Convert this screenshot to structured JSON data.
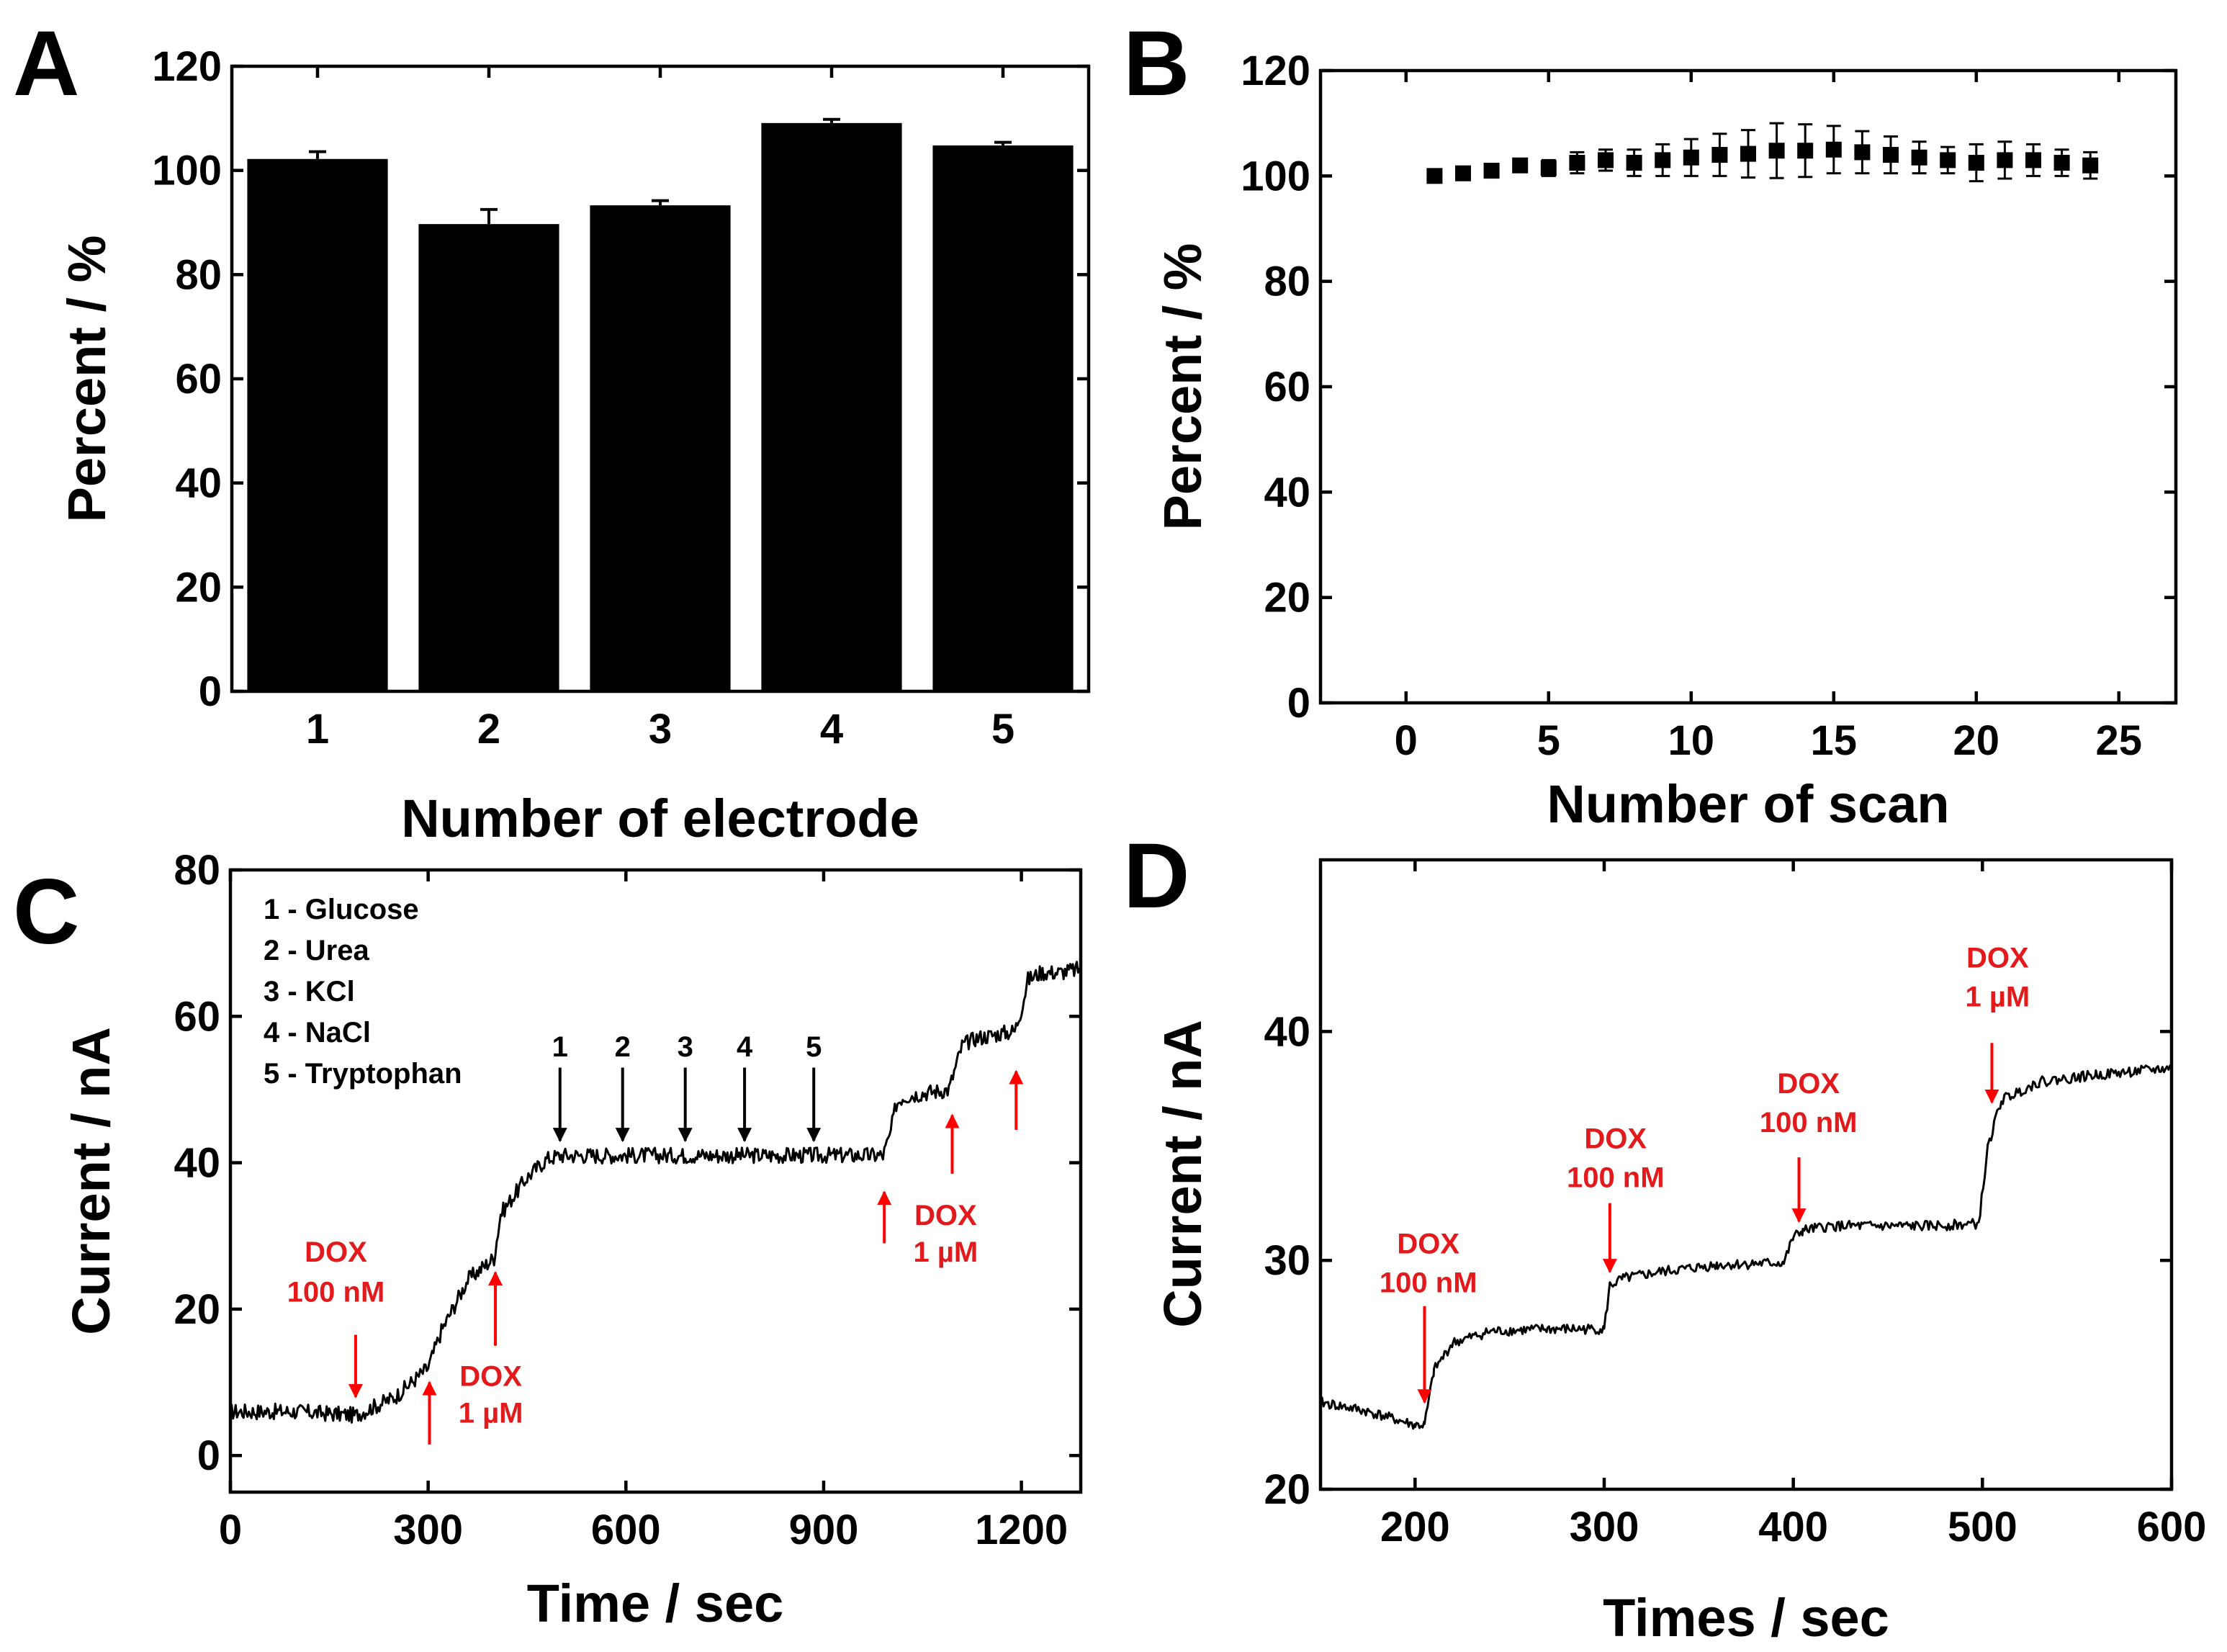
{
  "chart_data": [
    {
      "id": "A",
      "panel_label": "A",
      "type": "bar",
      "categories": [
        "1",
        "2",
        "3",
        "4",
        "5"
      ],
      "values": [
        102.2,
        89.7,
        93.3,
        109.1,
        104.8
      ],
      "errors": [
        1.4,
        2.8,
        0.9,
        0.7,
        0.6
      ],
      "xlabel": "Number of electrode",
      "ylabel": "Percent / %",
      "ylim": [
        0,
        120
      ],
      "yticks": [
        0,
        20,
        40,
        60,
        80,
        100,
        120
      ],
      "bar_color": "#000000"
    },
    {
      "id": "B",
      "panel_label": "B",
      "type": "scatter",
      "x": [
        1,
        2,
        3,
        4,
        5,
        6,
        7,
        8,
        9,
        10,
        11,
        12,
        13,
        14,
        15,
        16,
        17,
        18,
        19,
        20,
        21,
        22,
        23,
        24
      ],
      "y": [
        100,
        100.5,
        101,
        102,
        101.5,
        102.5,
        103,
        102.5,
        103,
        103.5,
        104,
        104.2,
        104.8,
        104.8,
        105,
        104.5,
        104,
        103.5,
        103,
        102.5,
        103,
        103,
        102.5,
        102
      ],
      "errors": [
        0.5,
        0.8,
        1,
        1,
        1.5,
        2,
        2,
        2.5,
        3,
        3.5,
        4,
        4.5,
        5.2,
        5,
        4.5,
        4,
        3.5,
        3,
        2.5,
        3.5,
        3.5,
        3,
        2.5,
        2.5
      ],
      "xlabel": "Number of scan",
      "ylabel": "Percent / %",
      "xlim": [
        -3,
        27
      ],
      "ylim": [
        0,
        120
      ],
      "xticks": [
        0,
        5,
        10,
        15,
        20,
        25
      ],
      "yticks": [
        0,
        20,
        40,
        60,
        80,
        100,
        120
      ]
    },
    {
      "id": "C",
      "panel_label": "C",
      "type": "line",
      "xlabel": "Time / sec",
      "ylabel": "Current / nA",
      "xlim": [
        0,
        1290
      ],
      "ylim": [
        -5,
        80
      ],
      "xticks": [
        0,
        300,
        600,
        900,
        1200
      ],
      "yticks": [
        0,
        20,
        40,
        60,
        80
      ],
      "series": [
        {
          "name": "current",
          "x": [
            0,
            100,
            190,
            250,
            300,
            320,
            360,
            400,
            410,
            450,
            480,
            500,
            600,
            700,
            800,
            900,
            990,
            1000,
            1010,
            1020,
            1050,
            1090,
            1100,
            1110,
            1130,
            1160,
            1190,
            1200,
            1210,
            1230,
            1260,
            1290
          ],
          "y": [
            6,
            6,
            5.5,
            8,
            12,
            17,
            24,
            27,
            33,
            38,
            40.5,
            41,
            41,
            41,
            41,
            41,
            41,
            43.5,
            48,
            49,
            49.5,
            50,
            53,
            56,
            57,
            57.5,
            58,
            61,
            65,
            66,
            66,
            66.5
          ]
        }
      ],
      "legend": [
        "1 - Glucose",
        "2 - Urea",
        "3 - KCl",
        "4 - NaCl",
        "5 - Tryptophan"
      ],
      "markers": [
        {
          "label": "1",
          "x": 500,
          "tip": 43
        },
        {
          "label": "2",
          "x": 595,
          "tip": 43
        },
        {
          "label": "3",
          "x": 690,
          "tip": 43
        },
        {
          "label": "4",
          "x": 780,
          "tip": 43
        },
        {
          "label": "5",
          "x": 885,
          "tip": 43
        }
      ],
      "annotations": [
        {
          "lines": [
            "DOX",
            "100 nM"
          ],
          "x": 190,
          "tip": 8,
          "dir": "down",
          "tx": 160,
          "ty1": 26.5,
          "ty2": 21
        },
        {
          "lines": [
            "DOX",
            "1 µM"
          ],
          "x": 302,
          "tip": 10,
          "tail": 1.5,
          "dir": "up",
          "tx": 395,
          "ty1": 9.5,
          "ty2": 4.5
        },
        {
          "lines": [
            "",
            ""
          ],
          "x": 402,
          "tip": 25,
          "tail": 15,
          "dir": "up",
          "tx": 0,
          "ty1": 0,
          "ty2": 0
        },
        {
          "lines": [
            "",
            ""
          ],
          "x": 992,
          "tip": 36,
          "tail": 29,
          "dir": "up",
          "tx": 0,
          "ty1": 0,
          "ty2": 0
        },
        {
          "lines": [
            "DOX",
            "1 µM"
          ],
          "x": 1095,
          "tip": 46.5,
          "tail": 38.5,
          "dir": "up",
          "tx": 1085,
          "ty1": 31.5,
          "ty2": 26.5
        },
        {
          "lines": [
            "",
            ""
          ],
          "x": 1192,
          "tip": 52.5,
          "tail": 44.5,
          "dir": "up",
          "tx": 0,
          "ty1": 0,
          "ty2": 0
        }
      ]
    },
    {
      "id": "D",
      "panel_label": "D",
      "type": "line",
      "xlabel": "Times / sec",
      "ylabel": "Current / nA",
      "xlim": [
        150,
        600
      ],
      "ylim": [
        20,
        47.5
      ],
      "xticks": [
        200,
        300,
        400,
        500,
        600
      ],
      "yticks": [
        20,
        30,
        40
      ],
      "series": [
        {
          "name": "current",
          "x": [
            150,
            175,
            200,
            205,
            210,
            220,
            240,
            270,
            300,
            303,
            310,
            330,
            360,
            395,
            400,
            405,
            420,
            440,
            470,
            498,
            503,
            510,
            530,
            560,
            600
          ],
          "y": [
            23.8,
            23.4,
            22.8,
            22.8,
            25.2,
            26.4,
            26.9,
            27,
            27,
            28.9,
            29.2,
            29.5,
            29.8,
            29.9,
            31,
            31.3,
            31.5,
            31.5,
            31.5,
            31.6,
            35,
            37,
            37.8,
            38.1,
            38.4
          ]
        }
      ],
      "annotations": [
        {
          "lines": [
            "DOX",
            "100 nM"
          ],
          "x": 205,
          "tip": 23.8,
          "tail": 28,
          "dir": "down",
          "tx": 207,
          "ty1": 30.3,
          "ty2": 28.6
        },
        {
          "lines": [
            "DOX",
            "100 nM"
          ],
          "x": 303,
          "tip": 29.5,
          "tail": 32.5,
          "dir": "down",
          "tx": 306,
          "ty1": 34.9,
          "ty2": 33.2
        },
        {
          "lines": [
            "DOX",
            "100 nM"
          ],
          "x": 403,
          "tip": 31.7,
          "tail": 34.5,
          "dir": "down",
          "tx": 408,
          "ty1": 37.3,
          "ty2": 35.6
        },
        {
          "lines": [
            "DOX",
            "1 µM"
          ],
          "x": 505,
          "tip": 36.9,
          "tail": 39.5,
          "dir": "down",
          "tx": 508,
          "ty1": 42.8,
          "ty2": 41.1
        }
      ]
    }
  ]
}
